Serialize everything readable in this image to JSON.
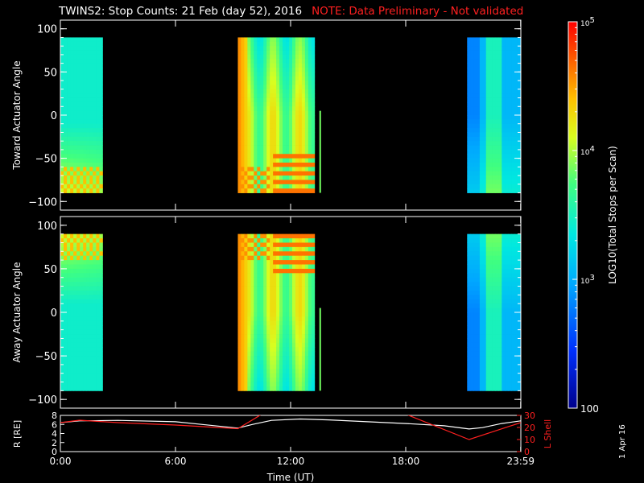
{
  "title": {
    "main": "TWINS2: Stop Counts: 21 Feb (day  52), 2016",
    "note": "NOTE: Data Preliminary - Not validated"
  },
  "footer": {
    "date_stamp": "1 Apr 16"
  },
  "colors": {
    "note": "#ff2020",
    "ephem_r": "#ffffff",
    "ephem_l": "#ff2020"
  },
  "chart_data": [
    {
      "type": "heatmap",
      "name": "toward",
      "ylabel": "Toward Actuator Angle",
      "ylim": [
        -110,
        110
      ],
      "yticks": [
        100,
        50,
        0,
        -50,
        -100
      ],
      "xlim": [
        0,
        24
      ],
      "data_blocks_hours": [
        [
          0.0,
          2.2
        ],
        [
          9.25,
          13.25
        ],
        [
          21.2,
          23.99
        ]
      ],
      "extra_strip_hour": 13.5
    },
    {
      "type": "heatmap",
      "name": "away",
      "ylabel": "Away Actuator Angle",
      "ylim": [
        -110,
        110
      ],
      "yticks": [
        100,
        50,
        0,
        -50,
        -100
      ],
      "xlim": [
        0,
        24
      ],
      "data_blocks_hours": [
        [
          0.0,
          2.2
        ],
        [
          9.25,
          13.25
        ],
        [
          21.2,
          23.99
        ]
      ],
      "extra_strip_hour": 13.5
    },
    {
      "type": "line",
      "name": "ephemeris",
      "xlabel": "Time (UT)",
      "xtick_labels": [
        "0:00",
        "6:00",
        "12:00",
        "18:00",
        "23:59"
      ],
      "xtick_hours": [
        0,
        6,
        12,
        18,
        23.99
      ],
      "left_axis": {
        "label": "R [RE]",
        "ylim": [
          0,
          8
        ],
        "ticks": [
          0,
          2,
          4,
          6,
          8
        ]
      },
      "right_axis": {
        "label": "L Shell",
        "ylim": [
          0,
          30
        ],
        "ticks": [
          0,
          10,
          20,
          30
        ]
      },
      "series": [
        {
          "name": "R [RE]",
          "axis": "left",
          "x": [
            0,
            1,
            3,
            6,
            9.25,
            10,
            11,
            12.5,
            14,
            16,
            18,
            20,
            21.3,
            22,
            23,
            23.99
          ],
          "y": [
            6.4,
            6.8,
            6.9,
            6.6,
            5.2,
            6.0,
            6.9,
            7.2,
            7.0,
            6.6,
            6.2,
            5.7,
            5.0,
            5.3,
            6.2,
            6.8
          ]
        },
        {
          "name": "L Shell",
          "axis": "right",
          "x": [
            0,
            1,
            3,
            6,
            9.25,
            10.5,
            18.0,
            21.3,
            23.99
          ],
          "y": [
            24,
            26,
            24,
            22,
            19,
            31,
            31,
            10,
            24
          ]
        }
      ]
    },
    {
      "type": "colorbar",
      "label": "LOG10(Total Stops per Scan)",
      "scale": "log",
      "range": [
        100,
        100000
      ],
      "tick_values": [
        100,
        1000,
        10000,
        100000
      ],
      "tick_labels": [
        "100",
        "10^3",
        "10^4",
        "10^5"
      ]
    }
  ]
}
